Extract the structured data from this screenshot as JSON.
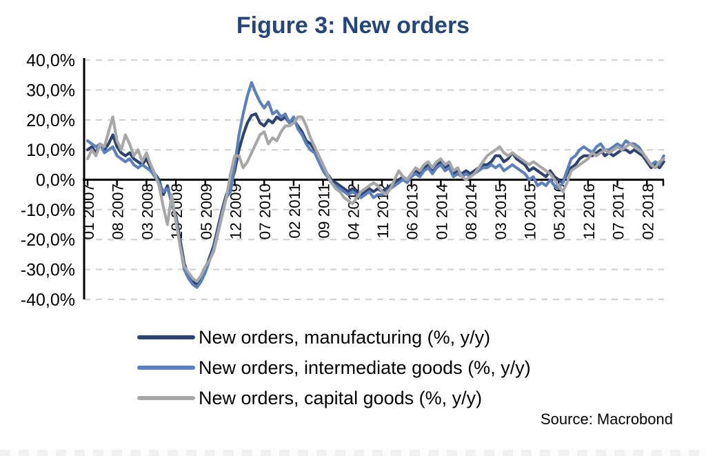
{
  "figure": {
    "title": "Figure 3: New orders",
    "title_color": "#24477B",
    "source": "Source: Macrobond"
  },
  "legend": {
    "position": "bottom-left",
    "items": [
      {
        "key": "manufacturing",
        "label": "New orders, manufacturing (%, y/y)",
        "color": "#2E4470"
      },
      {
        "key": "intermediate-goods",
        "label": "New orders, intermediate goods (%, y/y)",
        "color": "#5C80BE"
      },
      {
        "key": "capital-goods",
        "label": "New orders, capital goods (%, y/y)",
        "color": "#A7A7A7"
      }
    ]
  },
  "chart_data": {
    "type": "line",
    "x_unit": "month",
    "x_start": "2007-01",
    "x_end": "2018-06",
    "n_points": 138,
    "ylim": [
      -40,
      40
    ],
    "y_grid_step": 10,
    "grid": "dashed-horizontal",
    "grid_color": "#D4D4D4",
    "axis_color": "#000000",
    "y_tick_labels": [
      "40,0%",
      "30,0%",
      "20,0%",
      "10,0%",
      "0,0%",
      "-10,0%",
      "-20,0%",
      "-30,0%",
      "-40,0%"
    ],
    "y_tick_values": [
      40,
      30,
      20,
      10,
      0,
      -10,
      -20,
      -30,
      -40
    ],
    "x_tick_indices": [
      0,
      7,
      14,
      21,
      28,
      35,
      42,
      49,
      56,
      63,
      70,
      77,
      84,
      91,
      98,
      105,
      112,
      119,
      126,
      133
    ],
    "x_tick_labels": [
      "01 2007",
      "08 2007",
      "03 2008",
      "10 2008",
      "05 2009",
      "12 2009",
      "07 2010",
      "02 2011",
      "09 2011",
      "04 2012",
      "11 2012",
      "06 2013",
      "01 2014",
      "08 2014",
      "03 2015",
      "10 2015",
      "05 2016",
      "12 2016",
      "07 2017",
      "02 2018"
    ],
    "legend_position": "bottom-left",
    "series": [
      {
        "name": "New orders, manufacturing (%, y/y)",
        "key": "manufacturing",
        "color": "#2E4470",
        "values": [
          10,
          11,
          9,
          12,
          10,
          12,
          15,
          11,
          9,
          8,
          9,
          7,
          6,
          5,
          7,
          4,
          2,
          0,
          -5,
          -2,
          -8,
          -12,
          -20,
          -28,
          -32,
          -34,
          -35,
          -33,
          -30,
          -26,
          -22,
          -16,
          -10,
          -5,
          -2,
          3,
          10,
          15,
          19,
          21.5,
          22,
          19,
          18,
          20,
          19,
          21,
          20,
          21,
          19,
          20,
          18,
          16,
          13,
          12,
          10,
          7,
          4,
          2,
          0,
          -1,
          -2,
          -3,
          -4,
          -3,
          -4,
          -5,
          -4,
          -3,
          -4,
          -3,
          -4,
          -3,
          -2,
          -1,
          0,
          1,
          0,
          2,
          3,
          2,
          4,
          5,
          3,
          5,
          6,
          4,
          5,
          2,
          3,
          2,
          3,
          2,
          3,
          4,
          5,
          5,
          6,
          8,
          8,
          6,
          7,
          9,
          7,
          6,
          5,
          3,
          4,
          3,
          2,
          1,
          3,
          1,
          0,
          -1,
          2,
          4,
          5,
          7,
          8,
          8,
          8,
          9,
          10,
          8,
          9,
          8,
          9,
          10,
          10,
          9,
          10,
          9,
          8,
          6,
          4,
          5,
          4,
          6
        ]
      },
      {
        "name": "New orders, intermediate goods (%, y/y)",
        "key": "intermediate-goods",
        "color": "#5C80BE",
        "values": [
          13,
          12,
          11,
          12,
          9,
          10,
          11,
          8,
          7,
          6,
          7,
          5,
          4,
          5,
          4,
          3,
          1,
          -1,
          -4,
          -3,
          -7,
          -13,
          -22,
          -30,
          -33,
          -35,
          -36,
          -34,
          -31,
          -27,
          -23,
          -17,
          -11,
          -6,
          -4,
          5,
          15,
          22,
          28,
          32.5,
          29,
          26,
          24,
          26,
          22,
          23,
          21,
          22,
          19,
          21,
          17,
          15,
          12,
          10,
          9,
          6,
          3,
          1,
          -1,
          -2,
          -3,
          -4,
          -5,
          -4,
          -5,
          -6,
          -5,
          -4,
          -6,
          -5,
          -5,
          -4,
          -3,
          -2,
          -1,
          0,
          -1,
          1,
          2,
          1,
          3,
          4,
          2,
          4,
          5,
          3,
          4,
          1,
          2,
          1,
          2,
          1,
          2,
          3,
          4,
          4,
          5,
          4,
          5,
          3,
          4,
          5,
          4,
          3,
          2,
          0,
          1,
          -2,
          -1,
          -2,
          0,
          -2,
          -3,
          -1,
          3,
          7,
          8,
          10,
          11,
          10,
          9,
          11,
          12,
          10,
          10,
          11,
          12,
          11,
          13,
          12,
          12,
          11,
          9,
          7,
          5,
          6,
          5,
          8
        ]
      },
      {
        "name": "New orders, capital goods (%, y/y)",
        "key": "capital-goods",
        "color": "#A7A7A7",
        "values": [
          7,
          10,
          8,
          12,
          11,
          16,
          21,
          13,
          10,
          15,
          12,
          8,
          10,
          6,
          9,
          5,
          2,
          -2,
          -9,
          -15,
          -5,
          -14,
          -22,
          -29,
          -31,
          -33,
          -34,
          -32,
          -29,
          -27,
          -24,
          -18,
          -12,
          -6,
          2,
          8,
          8,
          4,
          6,
          9,
          12,
          15,
          16,
          12,
          14,
          13,
          16,
          18,
          18,
          19,
          21,
          21,
          18,
          14,
          11,
          8,
          5,
          2,
          -1,
          -3,
          -4,
          -6,
          -7,
          -8,
          -6,
          -4,
          -3,
          -2,
          -1,
          -2,
          -4,
          -5,
          -3,
          0,
          3,
          1,
          0,
          2,
          4,
          3,
          5,
          6,
          4,
          6,
          7,
          5,
          6,
          3,
          4,
          1,
          0,
          1,
          2,
          4,
          6,
          8,
          9,
          10,
          11,
          9,
          8,
          9,
          8,
          7,
          6,
          5,
          6,
          5,
          4,
          3,
          2,
          0,
          -2,
          -4,
          -1,
          3,
          4,
          5,
          6,
          7,
          9,
          8,
          9,
          10,
          9,
          10,
          11,
          10,
          11,
          12,
          11,
          10,
          9,
          7,
          5,
          4,
          6,
          7
        ]
      }
    ]
  }
}
